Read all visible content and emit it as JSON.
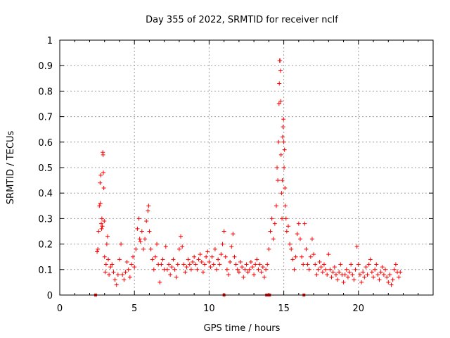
{
  "chart_data": {
    "type": "scatter",
    "title": "Day 355 of 2022, SRMTID for receiver nclf",
    "xlabel": "GPS time / hours",
    "ylabel": "SRMTID / TECUs",
    "xlim": [
      0,
      25
    ],
    "ylim": [
      0,
      1
    ],
    "xticks": [
      0,
      5,
      10,
      15,
      20
    ],
    "yticks": [
      0,
      0.1,
      0.2,
      0.3,
      0.4,
      0.5,
      0.6,
      0.7,
      0.8,
      0.9,
      1
    ],
    "ytick_labels": [
      "0",
      "0.1",
      "0.2",
      "0.3",
      "0.4",
      "0.5",
      "0.6",
      "0.7",
      "0.8",
      "0.9",
      "1"
    ],
    "grid": true,
    "series": [
      {
        "name": "SRMTID",
        "color": "#ff0000",
        "marker": "plus",
        "points": [
          [
            2.5,
            0.17
          ],
          [
            2.55,
            0.18
          ],
          [
            2.6,
            0.25
          ],
          [
            2.65,
            0.35
          ],
          [
            2.7,
            0.44
          ],
          [
            2.72,
            0.36
          ],
          [
            2.75,
            0.47
          ],
          [
            2.78,
            0.28
          ],
          [
            2.8,
            0.26
          ],
          [
            2.82,
            0.3
          ],
          [
            2.85,
            0.27
          ],
          [
            2.88,
            0.56
          ],
          [
            2.9,
            0.55
          ],
          [
            2.92,
            0.48
          ],
          [
            2.95,
            0.42
          ],
          [
            2.98,
            0.29
          ],
          [
            3.0,
            0.15
          ],
          [
            3.05,
            0.09
          ],
          [
            3.1,
            0.12
          ],
          [
            3.15,
            0.2
          ],
          [
            3.2,
            0.23
          ],
          [
            3.25,
            0.14
          ],
          [
            3.3,
            0.08
          ],
          [
            3.4,
            0.11
          ],
          [
            3.5,
            0.12
          ],
          [
            3.6,
            0.09
          ],
          [
            3.7,
            0.06
          ],
          [
            3.8,
            0.04
          ],
          [
            3.9,
            0.08
          ],
          [
            4.0,
            0.14
          ],
          [
            4.1,
            0.2
          ],
          [
            4.2,
            0.08
          ],
          [
            4.3,
            0.06
          ],
          [
            4.4,
            0.09
          ],
          [
            4.5,
            0.13
          ],
          [
            4.6,
            0.1
          ],
          [
            4.7,
            0.07
          ],
          [
            4.8,
            0.12
          ],
          [
            4.9,
            0.15
          ],
          [
            5.0,
            0.11
          ],
          [
            5.1,
            0.18
          ],
          [
            5.2,
            0.26
          ],
          [
            5.3,
            0.3
          ],
          [
            5.35,
            0.22
          ],
          [
            5.4,
            0.21
          ],
          [
            5.5,
            0.25
          ],
          [
            5.6,
            0.18
          ],
          [
            5.7,
            0.22
          ],
          [
            5.8,
            0.29
          ],
          [
            5.9,
            0.33
          ],
          [
            5.95,
            0.35
          ],
          [
            6.0,
            0.25
          ],
          [
            6.1,
            0.18
          ],
          [
            6.2,
            0.14
          ],
          [
            6.3,
            0.1
          ],
          [
            6.4,
            0.15
          ],
          [
            6.5,
            0.2
          ],
          [
            6.6,
            0.12
          ],
          [
            6.7,
            0.05
          ],
          [
            6.8,
            0.12
          ],
          [
            6.9,
            0.14
          ],
          [
            7.0,
            0.1
          ],
          [
            7.1,
            0.19
          ],
          [
            7.2,
            0.1
          ],
          [
            7.3,
            0.12
          ],
          [
            7.4,
            0.08
          ],
          [
            7.5,
            0.11
          ],
          [
            7.6,
            0.14
          ],
          [
            7.7,
            0.1
          ],
          [
            7.8,
            0.07
          ],
          [
            7.9,
            0.12
          ],
          [
            8.0,
            0.18
          ],
          [
            8.1,
            0.23
          ],
          [
            8.2,
            0.19
          ],
          [
            8.3,
            0.12
          ],
          [
            8.4,
            0.09
          ],
          [
            8.5,
            0.11
          ],
          [
            8.6,
            0.14
          ],
          [
            8.7,
            0.12
          ],
          [
            8.8,
            0.1
          ],
          [
            8.9,
            0.13
          ],
          [
            9.0,
            0.15
          ],
          [
            9.1,
            0.12
          ],
          [
            9.2,
            0.1
          ],
          [
            9.3,
            0.14
          ],
          [
            9.4,
            0.16
          ],
          [
            9.5,
            0.13
          ],
          [
            9.6,
            0.09
          ],
          [
            9.7,
            0.12
          ],
          [
            9.8,
            0.15
          ],
          [
            9.9,
            0.17
          ],
          [
            10.0,
            0.13
          ],
          [
            10.1,
            0.11
          ],
          [
            10.2,
            0.15
          ],
          [
            10.3,
            0.12
          ],
          [
            10.4,
            0.18
          ],
          [
            10.5,
            0.1
          ],
          [
            10.6,
            0.14
          ],
          [
            10.7,
            0.12
          ],
          [
            10.8,
            0.16
          ],
          [
            10.9,
            0.2
          ],
          [
            11.0,
            0.25
          ],
          [
            11.1,
            0.15
          ],
          [
            11.2,
            0.1
          ],
          [
            11.3,
            0.08
          ],
          [
            11.4,
            0.13
          ],
          [
            11.5,
            0.19
          ],
          [
            11.6,
            0.24
          ],
          [
            11.7,
            0.15
          ],
          [
            11.8,
            0.12
          ],
          [
            11.9,
            0.1
          ],
          [
            12.0,
            0.09
          ],
          [
            12.1,
            0.13
          ],
          [
            12.2,
            0.11
          ],
          [
            12.3,
            0.07
          ],
          [
            12.4,
            0.1
          ],
          [
            12.5,
            0.12
          ],
          [
            12.6,
            0.09
          ],
          [
            12.7,
            0.1
          ],
          [
            12.8,
            0.13
          ],
          [
            12.9,
            0.11
          ],
          [
            13.0,
            0.08
          ],
          [
            13.1,
            0.12
          ],
          [
            13.2,
            0.14
          ],
          [
            13.3,
            0.1
          ],
          [
            13.4,
            0.12
          ],
          [
            13.5,
            0.09
          ],
          [
            13.6,
            0.11
          ],
          [
            13.7,
            0.07
          ],
          [
            13.8,
            0.1
          ],
          [
            13.9,
            0.12
          ],
          [
            14.0,
            0.18
          ],
          [
            14.1,
            0.25
          ],
          [
            14.2,
            0.3
          ],
          [
            14.3,
            0.22
          ],
          [
            14.4,
            0.28
          ],
          [
            14.5,
            0.35
          ],
          [
            14.55,
            0.5
          ],
          [
            14.6,
            0.45
          ],
          [
            14.65,
            0.6
          ],
          [
            14.68,
            0.75
          ],
          [
            14.7,
            0.83
          ],
          [
            14.72,
            0.92
          ],
          [
            14.75,
            0.92
          ],
          [
            14.78,
            0.88
          ],
          [
            14.8,
            0.76
          ],
          [
            14.82,
            0.55
          ],
          [
            14.85,
            0.4
          ],
          [
            14.88,
            0.3
          ],
          [
            14.9,
            0.45
          ],
          [
            14.92,
            0.62
          ],
          [
            14.95,
            0.66
          ],
          [
            14.98,
            0.69
          ],
          [
            15.0,
            0.6
          ],
          [
            15.02,
            0.5
          ],
          [
            15.05,
            0.57
          ],
          [
            15.08,
            0.42
          ],
          [
            15.1,
            0.35
          ],
          [
            15.15,
            0.3
          ],
          [
            15.2,
            0.25
          ],
          [
            15.3,
            0.27
          ],
          [
            15.4,
            0.2
          ],
          [
            15.5,
            0.18
          ],
          [
            15.6,
            0.14
          ],
          [
            15.7,
            0.1
          ],
          [
            15.8,
            0.15
          ],
          [
            15.9,
            0.24
          ],
          [
            16.0,
            0.28
          ],
          [
            16.1,
            0.22
          ],
          [
            16.2,
            0.15
          ],
          [
            16.3,
            0.12
          ],
          [
            16.4,
            0.28
          ],
          [
            16.5,
            0.18
          ],
          [
            16.6,
            0.12
          ],
          [
            16.7,
            0.1
          ],
          [
            16.8,
            0.15
          ],
          [
            16.9,
            0.22
          ],
          [
            17.0,
            0.16
          ],
          [
            17.1,
            0.12
          ],
          [
            17.2,
            0.08
          ],
          [
            17.3,
            0.1
          ],
          [
            17.4,
            0.13
          ],
          [
            17.5,
            0.11
          ],
          [
            17.6,
            0.09
          ],
          [
            17.7,
            0.12
          ],
          [
            17.8,
            0.1
          ],
          [
            17.9,
            0.08
          ],
          [
            18.0,
            0.16
          ],
          [
            18.1,
            0.1
          ],
          [
            18.2,
            0.07
          ],
          [
            18.3,
            0.09
          ],
          [
            18.4,
            0.11
          ],
          [
            18.5,
            0.08
          ],
          [
            18.6,
            0.06
          ],
          [
            18.7,
            0.09
          ],
          [
            18.8,
            0.12
          ],
          [
            18.9,
            0.08
          ],
          [
            19.0,
            0.05
          ],
          [
            19.1,
            0.08
          ],
          [
            19.2,
            0.1
          ],
          [
            19.3,
            0.07
          ],
          [
            19.4,
            0.09
          ],
          [
            19.5,
            0.12
          ],
          [
            19.6,
            0.08
          ],
          [
            19.7,
            0.06
          ],
          [
            19.8,
            0.1
          ],
          [
            19.9,
            0.19
          ],
          [
            20.0,
            0.12
          ],
          [
            20.1,
            0.08
          ],
          [
            20.2,
            0.05
          ],
          [
            20.3,
            0.09
          ],
          [
            20.4,
            0.07
          ],
          [
            20.5,
            0.11
          ],
          [
            20.6,
            0.08
          ],
          [
            20.7,
            0.12
          ],
          [
            20.8,
            0.14
          ],
          [
            20.9,
            0.09
          ],
          [
            21.0,
            0.07
          ],
          [
            21.1,
            0.1
          ],
          [
            21.2,
            0.12
          ],
          [
            21.3,
            0.08
          ],
          [
            21.4,
            0.06
          ],
          [
            21.5,
            0.09
          ],
          [
            21.6,
            0.11
          ],
          [
            21.7,
            0.08
          ],
          [
            21.8,
            0.1
          ],
          [
            21.9,
            0.07
          ],
          [
            22.0,
            0.05
          ],
          [
            22.1,
            0.08
          ],
          [
            22.2,
            0.04
          ],
          [
            22.3,
            0.06
          ],
          [
            22.4,
            0.1
          ],
          [
            22.5,
            0.12
          ],
          [
            22.6,
            0.09
          ],
          [
            22.7,
            0.07
          ],
          [
            22.8,
            0.09
          ]
        ]
      }
    ],
    "gap_markers_x": [
      2.4,
      11.0,
      13.85,
      13.95,
      14.05,
      16.35
    ]
  }
}
